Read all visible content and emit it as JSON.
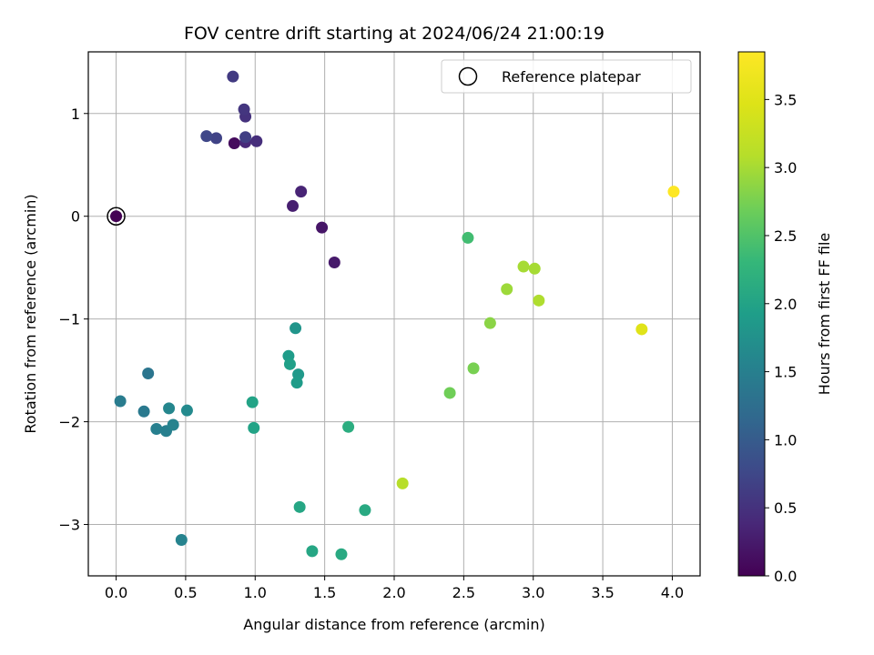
{
  "chart_data": {
    "type": "scatter",
    "title": "FOV centre drift starting at 2024/06/24 21:00:19",
    "xlabel": "Angular distance from reference (arcmin)",
    "ylabel": "Rotation from reference (arcmin)",
    "xlim": [
      -0.2,
      4.2
    ],
    "ylim": [
      -3.5,
      1.6
    ],
    "xticks": [
      0.0,
      0.5,
      1.0,
      1.5,
      2.0,
      2.5,
      3.0,
      3.5,
      4.0
    ],
    "xtick_labels": [
      "0.0",
      "0.5",
      "1.0",
      "1.5",
      "2.0",
      "2.5",
      "3.0",
      "3.5",
      "4.0"
    ],
    "yticks": [
      1,
      0,
      -1,
      -2,
      -3
    ],
    "ytick_labels": [
      "1",
      "0",
      "−1",
      "−2",
      "−3"
    ],
    "grid": true,
    "colormap": "viridis",
    "colorbar": {
      "label": "Hours from first FF file",
      "lim": [
        0.0,
        3.85
      ],
      "ticks": [
        0.0,
        0.5,
        1.0,
        1.5,
        2.0,
        2.5,
        3.0,
        3.5
      ],
      "tick_labels": [
        "0.0",
        "0.5",
        "1.0",
        "1.5",
        "2.0",
        "2.5",
        "3.0",
        "3.5"
      ]
    },
    "legend": {
      "entries": [
        "Reference platepar"
      ],
      "placement": "top-right"
    },
    "reference_point": {
      "x": 0.0,
      "y": 0.0
    },
    "points": [
      {
        "x": 0.0,
        "y": 0.0,
        "hours": 0.0
      },
      {
        "x": 0.85,
        "y": 0.71,
        "hours": 0.1
      },
      {
        "x": 1.48,
        "y": -0.11,
        "hours": 0.2
      },
      {
        "x": 1.57,
        "y": -0.45,
        "hours": 0.25
      },
      {
        "x": 1.27,
        "y": 0.1,
        "hours": 0.3
      },
      {
        "x": 1.33,
        "y": 0.24,
        "hours": 0.35
      },
      {
        "x": 0.93,
        "y": 0.72,
        "hours": 0.4
      },
      {
        "x": 1.01,
        "y": 0.73,
        "hours": 0.45
      },
      {
        "x": 0.93,
        "y": 0.97,
        "hours": 0.5
      },
      {
        "x": 0.92,
        "y": 1.04,
        "hours": 0.55
      },
      {
        "x": 0.84,
        "y": 1.36,
        "hours": 0.6
      },
      {
        "x": 0.93,
        "y": 0.77,
        "hours": 0.65
      },
      {
        "x": 0.72,
        "y": 0.76,
        "hours": 0.7
      },
      {
        "x": 0.65,
        "y": 0.78,
        "hours": 0.75
      },
      {
        "x": 0.23,
        "y": -1.53,
        "hours": 1.35
      },
      {
        "x": 0.2,
        "y": -1.9,
        "hours": 1.4
      },
      {
        "x": 0.03,
        "y": -1.8,
        "hours": 1.45
      },
      {
        "x": 0.36,
        "y": -2.09,
        "hours": 1.5
      },
      {
        "x": 0.29,
        "y": -2.07,
        "hours": 1.5
      },
      {
        "x": 0.47,
        "y": -3.15,
        "hours": 1.55
      },
      {
        "x": 0.41,
        "y": -2.03,
        "hours": 1.55
      },
      {
        "x": 0.38,
        "y": -1.87,
        "hours": 1.6
      },
      {
        "x": 0.51,
        "y": -1.89,
        "hours": 1.65
      },
      {
        "x": 1.29,
        "y": -1.09,
        "hours": 1.8
      },
      {
        "x": 1.31,
        "y": -1.54,
        "hours": 1.85
      },
      {
        "x": 1.3,
        "y": -1.62,
        "hours": 1.9
      },
      {
        "x": 1.24,
        "y": -1.36,
        "hours": 1.9
      },
      {
        "x": 1.25,
        "y": -1.44,
        "hours": 1.95
      },
      {
        "x": 0.98,
        "y": -1.81,
        "hours": 2.0
      },
      {
        "x": 0.99,
        "y": -2.06,
        "hours": 2.0
      },
      {
        "x": 1.41,
        "y": -3.26,
        "hours": 2.05
      },
      {
        "x": 1.32,
        "y": -2.83,
        "hours": 2.05
      },
      {
        "x": 1.62,
        "y": -3.29,
        "hours": 2.1
      },
      {
        "x": 1.79,
        "y": -2.86,
        "hours": 2.1
      },
      {
        "x": 1.67,
        "y": -2.05,
        "hours": 2.15
      },
      {
        "x": 2.53,
        "y": -0.21,
        "hours": 2.4
      },
      {
        "x": 2.4,
        "y": -1.72,
        "hours": 2.7
      },
      {
        "x": 2.57,
        "y": -1.48,
        "hours": 2.75
      },
      {
        "x": 2.69,
        "y": -1.04,
        "hours": 2.85
      },
      {
        "x": 2.81,
        "y": -0.71,
        "hours": 2.95
      },
      {
        "x": 2.93,
        "y": -0.49,
        "hours": 3.0
      },
      {
        "x": 3.01,
        "y": -0.51,
        "hours": 3.0
      },
      {
        "x": 3.04,
        "y": -0.82,
        "hours": 3.05
      },
      {
        "x": 2.06,
        "y": -2.6,
        "hours": 3.1
      },
      {
        "x": 3.78,
        "y": -1.1,
        "hours": 3.5
      },
      {
        "x": 4.01,
        "y": 0.24,
        "hours": 3.85
      }
    ]
  }
}
